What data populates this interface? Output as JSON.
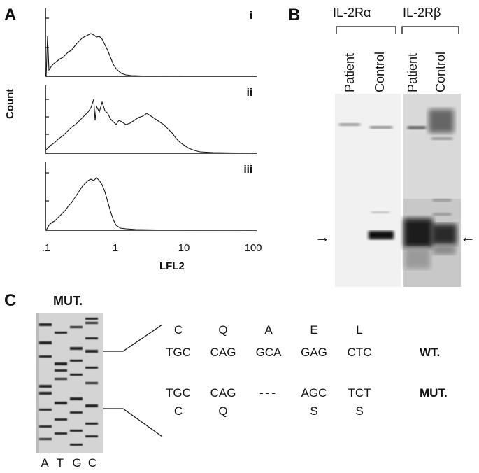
{
  "panels": {
    "a": {
      "letter": "A",
      "y_title": "Count",
      "x_title": "LFL2",
      "x_ticks": [
        ".1",
        "1",
        "10",
        "100"
      ],
      "histograms": [
        {
          "label": "i"
        },
        {
          "label": "ii"
        },
        {
          "label": "iii"
        }
      ]
    },
    "b": {
      "letter": "B",
      "group1": "IL-2Rα",
      "group2": "IL-2Rβ",
      "lanes": [
        "Patient",
        "Control",
        "Patient",
        "Control"
      ],
      "arrow_left": "→",
      "arrow_right": "←"
    },
    "c": {
      "letter": "C",
      "gel_title": "MUT.",
      "gel_lanes": [
        "A",
        "T",
        "G",
        "C"
      ],
      "wt_aa": [
        "C",
        "Q",
        "A",
        "E",
        "L"
      ],
      "wt_codons": [
        "TGC",
        "CAG",
        "GCA",
        "GAG",
        "CTC"
      ],
      "wt_tag": "WT.",
      "mut_codons": [
        "TGC",
        "CAG",
        "---",
        "AGC",
        "TCT"
      ],
      "mut_aa": [
        "C",
        "Q",
        "",
        "S",
        "S"
      ],
      "mut_tag": "MUT."
    }
  }
}
